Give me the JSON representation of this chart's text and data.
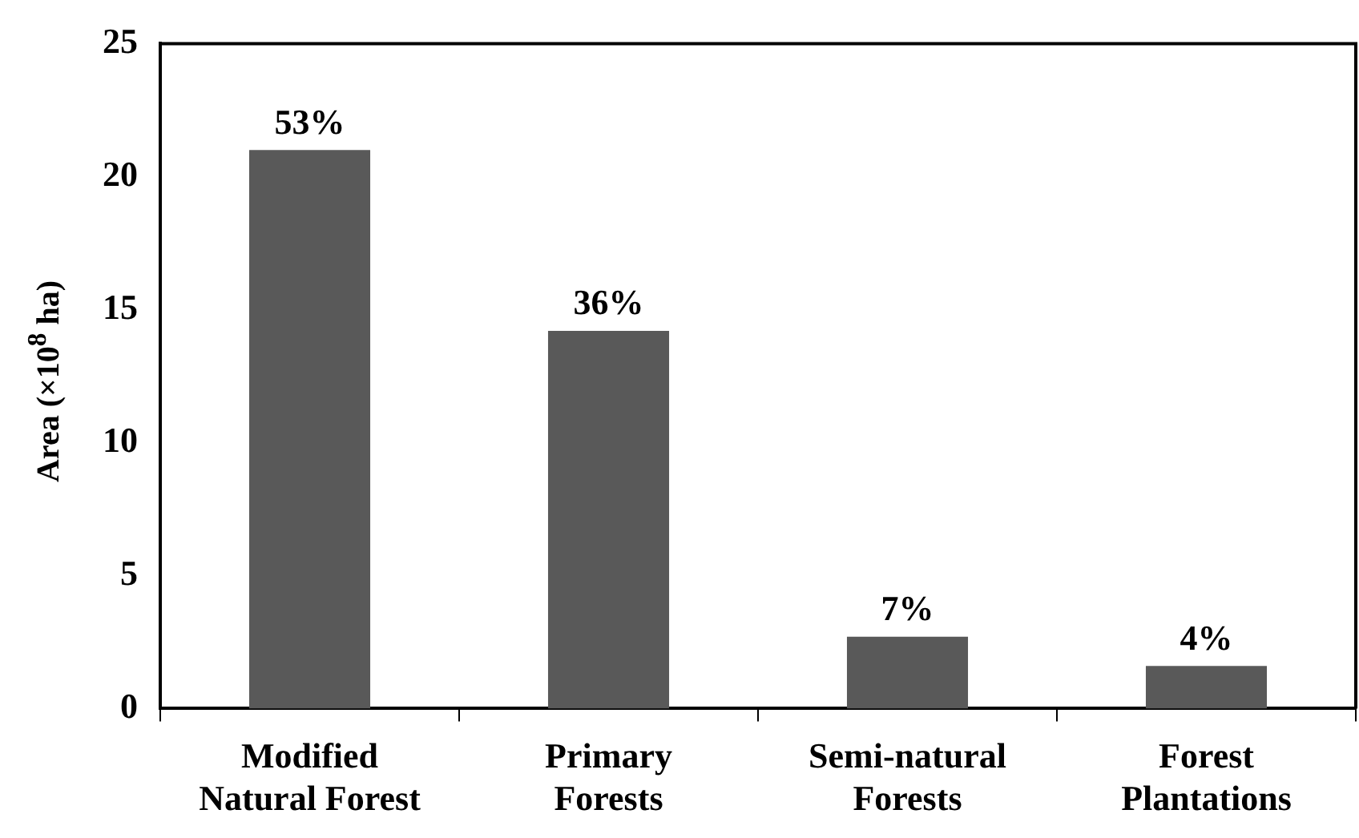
{
  "chart_data": {
    "type": "bar",
    "ylabel": "Area (×10$^{8}$ ha)",
    "categories": [
      "Modified Natural Forest",
      "Primary Forests",
      "Semi-natural Forests",
      "Forest Plantations"
    ],
    "values": [
      21,
      14.2,
      2.7,
      1.6
    ],
    "annotations": [
      {
        "text": "53%",
        "x": "Modified Natural Forest",
        "y": 21
      },
      {
        "text": "36%",
        "x": "Primary Forests",
        "y": 14.2
      },
      {
        "text": "7%",
        "x": "Semi-natural Forests",
        "y": 2.7
      },
      {
        "text": "4%",
        "x": "Forest Plantations",
        "y": 1.6
      }
    ],
    "color": "#595959",
    "ylim": [
      0,
      25
    ],
    "yticks": [
      0,
      5,
      10,
      15,
      20,
      25
    ],
    "grid": false,
    "legend": false
  }
}
